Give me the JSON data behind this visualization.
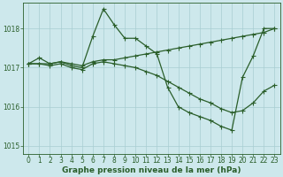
{
  "xlabel": "Graphe pression niveau de la mer (hPa)",
  "xlim": [
    -0.5,
    23.5
  ],
  "ylim": [
    1014.8,
    1018.65
  ],
  "yticks": [
    1015,
    1016,
    1017,
    1018
  ],
  "xticks": [
    0,
    1,
    2,
    3,
    4,
    5,
    6,
    7,
    8,
    9,
    10,
    11,
    12,
    13,
    14,
    15,
    16,
    17,
    18,
    19,
    20,
    21,
    22,
    23
  ],
  "bg_color": "#cde8ec",
  "grid_color": "#a8cdd2",
  "line_color": "#2a5e2a",
  "line1_x": [
    0,
    1,
    2,
    3,
    4,
    5,
    6,
    7,
    8,
    9,
    10,
    11,
    12,
    13,
    14,
    15,
    16,
    17,
    18,
    19,
    20,
    21,
    22,
    23
  ],
  "line1_y": [
    1017.1,
    1017.25,
    1017.1,
    1017.15,
    1017.05,
    1017.0,
    1017.8,
    1018.5,
    1018.1,
    1017.75,
    1017.75,
    1017.55,
    1017.35,
    1016.5,
    1016.0,
    1015.85,
    1015.75,
    1015.65,
    1015.5,
    1015.4,
    1016.75,
    1017.3,
    1018.0,
    1018.0
  ],
  "line2_x": [
    0,
    1,
    2,
    3,
    4,
    5,
    6,
    7,
    8,
    9,
    10,
    11,
    12,
    13,
    14,
    15,
    16,
    17,
    18,
    19,
    20,
    21,
    22,
    23
  ],
  "line2_y": [
    1017.1,
    1017.1,
    1017.05,
    1017.1,
    1017.0,
    1016.95,
    1017.1,
    1017.15,
    1017.1,
    1017.05,
    1017.0,
    1016.9,
    1016.8,
    1016.65,
    1016.5,
    1016.35,
    1016.2,
    1016.1,
    1015.95,
    1015.85,
    1015.9,
    1016.1,
    1016.4,
    1016.55
  ],
  "line3_x": [
    0,
    1,
    2,
    3,
    4,
    5,
    6,
    7,
    8,
    9,
    10,
    11,
    12,
    13,
    14,
    15,
    16,
    17,
    18,
    19,
    20,
    21,
    22,
    23
  ],
  "line3_y": [
    1017.1,
    1017.1,
    1017.1,
    1017.15,
    1017.1,
    1017.05,
    1017.15,
    1017.2,
    1017.2,
    1017.25,
    1017.3,
    1017.35,
    1017.4,
    1017.45,
    1017.5,
    1017.55,
    1017.6,
    1017.65,
    1017.7,
    1017.75,
    1017.8,
    1017.85,
    1017.9,
    1018.0
  ],
  "axis_color": "#2a5e2a",
  "tick_color": "#2a5e2a",
  "label_color": "#2a5e2a",
  "font_size_label": 6.5,
  "font_size_tick": 5.5
}
